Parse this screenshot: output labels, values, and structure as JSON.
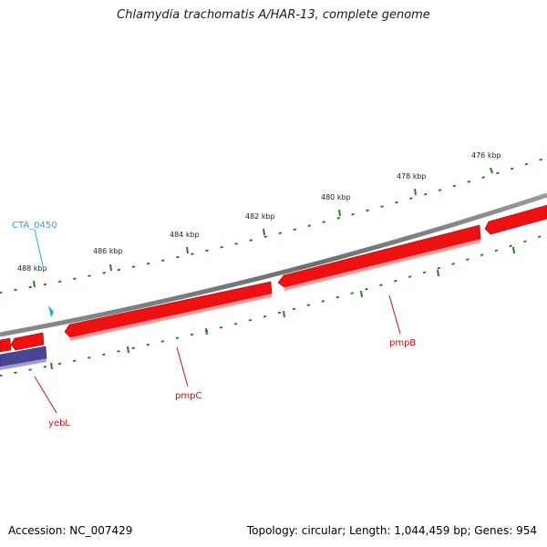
{
  "title": "Chlamydia trachomatis A/HAR-13, complete genome",
  "footer": {
    "accession": "Accession: NC_007429",
    "stats": "Topology: circular; Length: 1,044,459 bp; Genes: 954"
  },
  "colors": {
    "backbone": "#7a7a7a",
    "forward_gene": "#ee1111",
    "reverse_gene": "#4a4494",
    "tick": "#2e7d1f",
    "cyan_label": "#22aacc",
    "red_label": "#cc1111"
  },
  "scale": {
    "unit": "kbp",
    "labels": [
      "476 kbp",
      "478 kbp",
      "480 kbp",
      "482 kbp",
      "484 kbp",
      "486 kbp",
      "488 kbp"
    ]
  },
  "genes": [
    {
      "name": "pmpB",
      "strand": "forward"
    },
    {
      "name": "pmpC",
      "strand": "forward"
    },
    {
      "name": "yebL",
      "strand": "reverse"
    },
    {
      "name": "CTA_0450",
      "strand": "forward"
    }
  ]
}
